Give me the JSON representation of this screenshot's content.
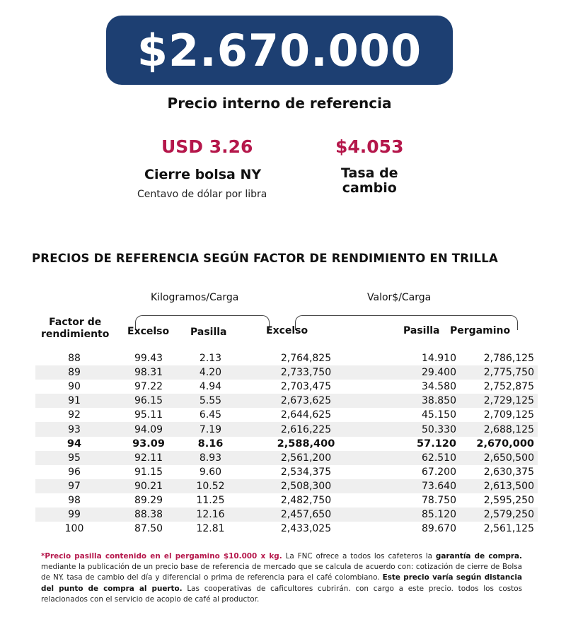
{
  "price": "$2.670.000",
  "price_label": "Precio interno de referencia",
  "ny": {
    "value": "USD 3.26",
    "label": "Cierre bolsa NY",
    "sub": "Centavo de dólar por libra"
  },
  "fx": {
    "value": "$4.053",
    "label_line1": "Tasa de",
    "label_line2": "cambio"
  },
  "table_title": "PRECIOS DE REFERENCIA SEGÚN FACTOR DE RENDIMIENTO EN TRILLA",
  "groups": {
    "kg": "Kilogramos/Carga",
    "value": "Valor$/Carga"
  },
  "headers": {
    "factor1": "Factor de",
    "factor2": "rendimiento",
    "excelso_kg": "Excelso",
    "pasilla_kg": "Pasilla",
    "excelso_val": "Excelso",
    "pasilla_val": "Pasilla",
    "pergamino": "Pergamino"
  },
  "rows": [
    [
      "88",
      "99.43",
      "2.13",
      "2,764,825",
      "14.910",
      "2,786,125"
    ],
    [
      "89",
      "98.31",
      "4.20",
      "2,733,750",
      "29.400",
      "2,775,750"
    ],
    [
      "90",
      "97.22",
      "4.94",
      "2,703,475",
      "34.580",
      "2,752,875"
    ],
    [
      "91",
      "96.15",
      "5.55",
      "2,673,625",
      "38.850",
      "2,729,125"
    ],
    [
      "92",
      "95.11",
      "6.45",
      "2,644,625",
      "45.150",
      "2,709,125"
    ],
    [
      "93",
      "94.09",
      "7.19",
      "2,616,225",
      "50.330",
      "2,688,125"
    ],
    [
      "94",
      "93.09",
      "8.16",
      "2,588,400",
      "57.120",
      "2,670,000"
    ],
    [
      "95",
      "92.11",
      "8.93",
      "2,561,200",
      "62.510",
      "2,650,500"
    ],
    [
      "96",
      "91.15",
      "9.60",
      "2,534,375",
      "67.200",
      "2,630,375"
    ],
    [
      "97",
      "90.21",
      "10.52",
      "2,508,300",
      "73.640",
      "2,613,500"
    ],
    [
      "98",
      "89.29",
      "11.25",
      "2,482,750",
      "78.750",
      "2,595,250"
    ],
    [
      "99",
      "88.38",
      "12.16",
      "2,457,650",
      "85.120",
      "2,579,250"
    ],
    [
      "100",
      "87.50",
      "12.81",
      "2,433,025",
      "89.670",
      "2,561,125"
    ]
  ],
  "highlight_row": "94",
  "footnote": {
    "p1_red": "*Precio pasilla contenido en el pergamino $10.000 x kg.",
    "p2": " La FNC ofrece a todos los cafeteros la ",
    "p3_bold": "garantía de compra.",
    "p4": " mediante la publicación de un precio base de referencia de mercado que se calcula de acuerdo con: cotización de cierre de Bolsa de NY. tasa de cambio del día y diferencial o prima de referencia para el café colombiano. ",
    "p5_bold": "Este precio varía según distancia del punto de compra al puerto.",
    "p6": " Las cooperativas de caficultores cubrirán. con cargo a este precio. todos los costos relacionados con el servicio de acopio de café al productor."
  },
  "colors": {
    "navy": "#1d3f72",
    "crimson": "#b5174b",
    "stripe": "#efefef"
  }
}
